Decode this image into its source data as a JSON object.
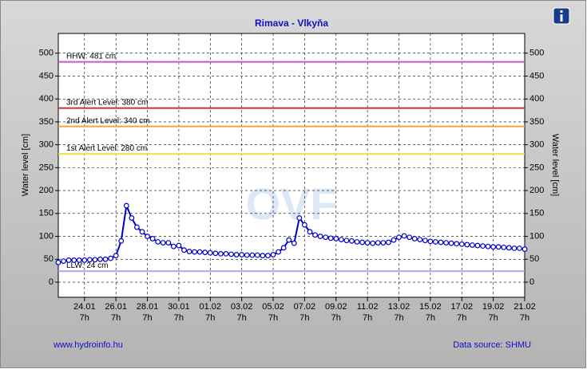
{
  "chart_data": {
    "type": "line",
    "title": "Rimava - Vlkyňa",
    "ylabel": "Water level [cm]",
    "y2label": "Water level [cm]",
    "footer_left": "www.hydroinfo.hu",
    "footer_right": "Data source: SHMU",
    "watermark": "OVF",
    "xlim": [
      0,
      89
    ],
    "ylim": [
      -33,
      543
    ],
    "yticks": [
      0,
      50,
      100,
      150,
      200,
      250,
      300,
      350,
      400,
      450,
      500
    ],
    "xticks": [
      {
        "value": 5,
        "label": "24.01"
      },
      {
        "value": 11,
        "label": "26.01"
      },
      {
        "value": 17,
        "label": "28.01"
      },
      {
        "value": 23,
        "label": "30.01"
      },
      {
        "value": 29,
        "label": "01.02"
      },
      {
        "value": 35,
        "label": "03.02"
      },
      {
        "value": 41,
        "label": "05.02"
      },
      {
        "value": 47,
        "label": "07.02"
      },
      {
        "value": 53,
        "label": "09.02"
      },
      {
        "value": 59,
        "label": "11.02"
      },
      {
        "value": 65,
        "label": "13.02"
      },
      {
        "value": 71,
        "label": "15.02"
      },
      {
        "value": 77,
        "label": "17.02"
      },
      {
        "value": 83,
        "label": "19.02"
      },
      {
        "value": 89,
        "label": "21.02"
      }
    ],
    "xtick_sublabel": "7h",
    "grid": true,
    "thresholds": [
      {
        "label": "HHW: 481 cm",
        "value": 481,
        "color": "#c858c8"
      },
      {
        "label": "3rd Alert Level: 380 cm",
        "value": 380,
        "color": "#c83030"
      },
      {
        "label": "2nd Alert Level: 340 cm",
        "value": 340,
        "color": "#f0a830"
      },
      {
        "label": "1st Alert Level: 280 cm",
        "value": 280,
        "color": "#f0e048"
      },
      {
        "label": "LLW: 24 cm",
        "value": 24,
        "color": "#a8a8f0"
      }
    ],
    "series": [
      {
        "name": "Water level",
        "color": "#0000c8",
        "values": [
          43,
          46,
          48,
          48,
          48,
          48,
          49,
          49,
          50,
          50,
          52,
          58,
          90,
          167,
          140,
          120,
          110,
          100,
          95,
          88,
          86,
          86,
          78,
          80,
          70,
          67,
          66,
          66,
          65,
          64,
          63,
          62,
          62,
          61,
          60,
          60,
          59,
          59,
          59,
          58,
          58,
          60,
          66,
          75,
          92,
          85,
          140,
          125,
          110,
          103,
          100,
          98,
          96,
          95,
          93,
          91,
          90,
          88,
          87,
          86,
          85,
          86,
          86,
          87,
          92,
          98,
          101,
          98,
          95,
          93,
          91,
          89,
          88,
          87,
          86,
          85,
          84,
          83,
          82,
          81,
          80,
          79,
          78,
          77,
          77,
          76,
          75,
          74,
          74,
          72
        ]
      }
    ]
  }
}
